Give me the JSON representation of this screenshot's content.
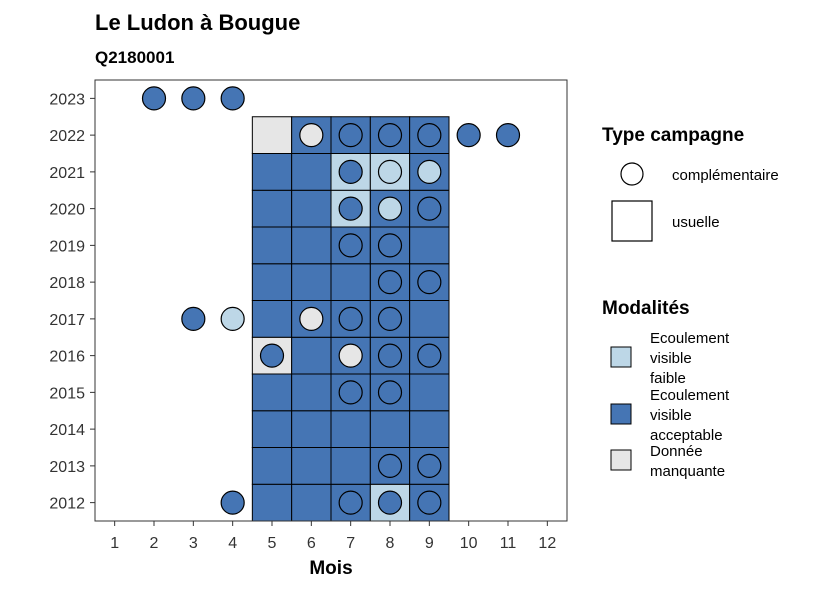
{
  "chart_data": {
    "type": "heatmap",
    "title": "Le Ludon à Bougue",
    "subtitle": "Q2180001",
    "xlabel": "Mois",
    "ylabel": "",
    "x_ticks": [
      1,
      2,
      3,
      4,
      5,
      6,
      7,
      8,
      9,
      10,
      11,
      12
    ],
    "y_ticks": [
      2012,
      2013,
      2014,
      2015,
      2016,
      2017,
      2018,
      2019,
      2020,
      2021,
      2022,
      2023
    ],
    "xlim": [
      0.5,
      12.5
    ],
    "ylim": [
      2011.5,
      2023.5
    ],
    "grid": false,
    "colors": {
      "faible": "#bdd7e7",
      "acceptable": "#4575b4",
      "manquante": "#e6e6e6"
    },
    "cells": [
      {
        "x": 5,
        "y": 2012,
        "modalite": "acceptable"
      },
      {
        "x": 6,
        "y": 2012,
        "modalite": "acceptable"
      },
      {
        "x": 7,
        "y": 2012,
        "modalite": "acceptable"
      },
      {
        "x": 8,
        "y": 2012,
        "modalite": "faible"
      },
      {
        "x": 9,
        "y": 2012,
        "modalite": "acceptable"
      },
      {
        "x": 5,
        "y": 2013,
        "modalite": "acceptable"
      },
      {
        "x": 6,
        "y": 2013,
        "modalite": "acceptable"
      },
      {
        "x": 7,
        "y": 2013,
        "modalite": "acceptable"
      },
      {
        "x": 8,
        "y": 2013,
        "modalite": "acceptable"
      },
      {
        "x": 9,
        "y": 2013,
        "modalite": "acceptable"
      },
      {
        "x": 5,
        "y": 2014,
        "modalite": "acceptable"
      },
      {
        "x": 6,
        "y": 2014,
        "modalite": "acceptable"
      },
      {
        "x": 7,
        "y": 2014,
        "modalite": "acceptable"
      },
      {
        "x": 8,
        "y": 2014,
        "modalite": "acceptable"
      },
      {
        "x": 9,
        "y": 2014,
        "modalite": "acceptable"
      },
      {
        "x": 5,
        "y": 2015,
        "modalite": "acceptable"
      },
      {
        "x": 6,
        "y": 2015,
        "modalite": "acceptable"
      },
      {
        "x": 7,
        "y": 2015,
        "modalite": "acceptable"
      },
      {
        "x": 8,
        "y": 2015,
        "modalite": "acceptable"
      },
      {
        "x": 9,
        "y": 2015,
        "modalite": "acceptable"
      },
      {
        "x": 5,
        "y": 2016,
        "modalite": "manquante"
      },
      {
        "x": 6,
        "y": 2016,
        "modalite": "acceptable"
      },
      {
        "x": 7,
        "y": 2016,
        "modalite": "acceptable"
      },
      {
        "x": 8,
        "y": 2016,
        "modalite": "acceptable"
      },
      {
        "x": 9,
        "y": 2016,
        "modalite": "acceptable"
      },
      {
        "x": 5,
        "y": 2017,
        "modalite": "acceptable"
      },
      {
        "x": 6,
        "y": 2017,
        "modalite": "acceptable"
      },
      {
        "x": 7,
        "y": 2017,
        "modalite": "acceptable"
      },
      {
        "x": 8,
        "y": 2017,
        "modalite": "acceptable"
      },
      {
        "x": 9,
        "y": 2017,
        "modalite": "acceptable"
      },
      {
        "x": 5,
        "y": 2018,
        "modalite": "acceptable"
      },
      {
        "x": 6,
        "y": 2018,
        "modalite": "acceptable"
      },
      {
        "x": 7,
        "y": 2018,
        "modalite": "acceptable"
      },
      {
        "x": 8,
        "y": 2018,
        "modalite": "acceptable"
      },
      {
        "x": 9,
        "y": 2018,
        "modalite": "acceptable"
      },
      {
        "x": 5,
        "y": 2019,
        "modalite": "acceptable"
      },
      {
        "x": 6,
        "y": 2019,
        "modalite": "acceptable"
      },
      {
        "x": 7,
        "y": 2019,
        "modalite": "acceptable"
      },
      {
        "x": 8,
        "y": 2019,
        "modalite": "acceptable"
      },
      {
        "x": 9,
        "y": 2019,
        "modalite": "acceptable"
      },
      {
        "x": 5,
        "y": 2020,
        "modalite": "acceptable"
      },
      {
        "x": 6,
        "y": 2020,
        "modalite": "acceptable"
      },
      {
        "x": 7,
        "y": 2020,
        "modalite": "faible"
      },
      {
        "x": 8,
        "y": 2020,
        "modalite": "acceptable"
      },
      {
        "x": 9,
        "y": 2020,
        "modalite": "acceptable"
      },
      {
        "x": 5,
        "y": 2021,
        "modalite": "acceptable"
      },
      {
        "x": 6,
        "y": 2021,
        "modalite": "acceptable"
      },
      {
        "x": 7,
        "y": 2021,
        "modalite": "faible"
      },
      {
        "x": 8,
        "y": 2021,
        "modalite": "faible"
      },
      {
        "x": 9,
        "y": 2021,
        "modalite": "acceptable"
      },
      {
        "x": 5,
        "y": 2022,
        "modalite": "manquante"
      },
      {
        "x": 6,
        "y": 2022,
        "modalite": "acceptable"
      },
      {
        "x": 7,
        "y": 2022,
        "modalite": "acceptable"
      },
      {
        "x": 8,
        "y": 2022,
        "modalite": "acceptable"
      },
      {
        "x": 9,
        "y": 2022,
        "modalite": "acceptable"
      }
    ],
    "points": [
      {
        "x": 4,
        "y": 2012,
        "modalite": "acceptable"
      },
      {
        "x": 7,
        "y": 2012,
        "modalite": "acceptable"
      },
      {
        "x": 8,
        "y": 2012,
        "modalite": "acceptable"
      },
      {
        "x": 9,
        "y": 2012,
        "modalite": "acceptable"
      },
      {
        "x": 8,
        "y": 2013,
        "modalite": "acceptable"
      },
      {
        "x": 9,
        "y": 2013,
        "modalite": "acceptable"
      },
      {
        "x": 7,
        "y": 2015,
        "modalite": "acceptable"
      },
      {
        "x": 8,
        "y": 2015,
        "modalite": "acceptable"
      },
      {
        "x": 5,
        "y": 2016,
        "modalite": "acceptable"
      },
      {
        "x": 7,
        "y": 2016,
        "modalite": "manquante"
      },
      {
        "x": 8,
        "y": 2016,
        "modalite": "acceptable"
      },
      {
        "x": 9,
        "y": 2016,
        "modalite": "acceptable"
      },
      {
        "x": 3,
        "y": 2017,
        "modalite": "acceptable"
      },
      {
        "x": 4,
        "y": 2017,
        "modalite": "faible"
      },
      {
        "x": 6,
        "y": 2017,
        "modalite": "manquante"
      },
      {
        "x": 7,
        "y": 2017,
        "modalite": "acceptable"
      },
      {
        "x": 8,
        "y": 2017,
        "modalite": "acceptable"
      },
      {
        "x": 8,
        "y": 2018,
        "modalite": "acceptable"
      },
      {
        "x": 9,
        "y": 2018,
        "modalite": "acceptable"
      },
      {
        "x": 7,
        "y": 2019,
        "modalite": "acceptable"
      },
      {
        "x": 8,
        "y": 2019,
        "modalite": "acceptable"
      },
      {
        "x": 7,
        "y": 2020,
        "modalite": "acceptable"
      },
      {
        "x": 8,
        "y": 2020,
        "modalite": "faible"
      },
      {
        "x": 9,
        "y": 2020,
        "modalite": "acceptable"
      },
      {
        "x": 7,
        "y": 2021,
        "modalite": "acceptable"
      },
      {
        "x": 8,
        "y": 2021,
        "modalite": "faible"
      },
      {
        "x": 9,
        "y": 2021,
        "modalite": "faible"
      },
      {
        "x": 6,
        "y": 2022,
        "modalite": "manquante"
      },
      {
        "x": 7,
        "y": 2022,
        "modalite": "acceptable"
      },
      {
        "x": 8,
        "y": 2022,
        "modalite": "acceptable"
      },
      {
        "x": 9,
        "y": 2022,
        "modalite": "acceptable"
      },
      {
        "x": 10,
        "y": 2022,
        "modalite": "acceptable"
      },
      {
        "x": 11,
        "y": 2022,
        "modalite": "acceptable"
      },
      {
        "x": 2,
        "y": 2023,
        "modalite": "acceptable"
      },
      {
        "x": 3,
        "y": 2023,
        "modalite": "acceptable"
      },
      {
        "x": 4,
        "y": 2023,
        "modalite": "acceptable"
      }
    ],
    "legend_type": {
      "title": "Type campagne",
      "entries": [
        {
          "label": "complémentaire",
          "shape": "circle"
        },
        {
          "label": "usuelle",
          "shape": "square"
        }
      ]
    },
    "legend_modalites": {
      "title": "Modalités",
      "entries": [
        {
          "key": "faible",
          "lines": [
            "Ecoulement",
            "visible",
            "faible"
          ]
        },
        {
          "key": "acceptable",
          "lines": [
            "Ecoulement",
            "visible",
            "acceptable"
          ]
        },
        {
          "key": "manquante",
          "lines": [
            "Donnée",
            "manquante"
          ]
        }
      ]
    }
  }
}
